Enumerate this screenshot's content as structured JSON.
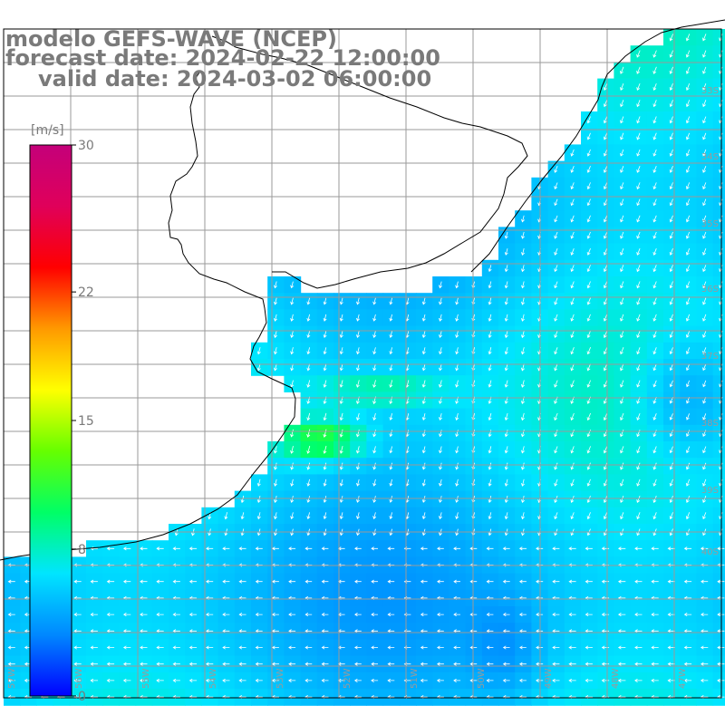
{
  "header": {
    "model": "modelo GEFS-WAVE (NCEP)",
    "forecast": "forecast date: 2024-02-22 12:00:00",
    "valid": "valid date: 2024-03-02 06:00:00"
  },
  "colorbar": {
    "unit": "[m/s]",
    "ticks": [
      "30",
      "22",
      "15",
      "8",
      "0"
    ],
    "tick_values": [
      30,
      22,
      15,
      8,
      0
    ],
    "range": [
      0,
      30
    ],
    "colors": [
      "#0000ff",
      "#0088ff",
      "#00e5ff",
      "#00ff66",
      "#66ff00",
      "#ffff00",
      "#ff9900",
      "#ff0000",
      "#e0005a",
      "#c4007a"
    ]
  },
  "grid_labels": {
    "latitudes": [
      "33S",
      "34S",
      "35S",
      "36S",
      "37S",
      "38S",
      "39S",
      "40S"
    ],
    "longitudes": [
      "57W",
      "56W",
      "55W",
      "54W",
      "53W",
      "52W",
      "51W",
      "50W",
      "49W",
      "48W",
      "47W"
    ]
  },
  "colors": {
    "land": "#ffffff",
    "grid": "#9a9a9a",
    "coast": "#000000",
    "arrow": "#ffffff",
    "text": "#7a7a7a"
  }
}
